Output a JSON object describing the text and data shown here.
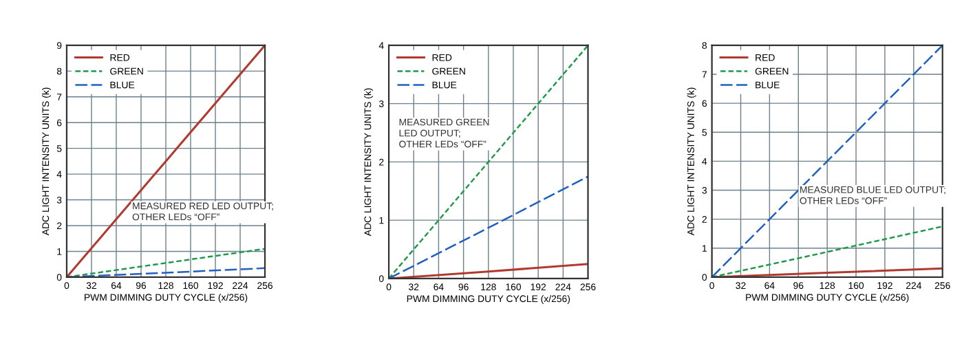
{
  "chart_data": [
    {
      "type": "line",
      "xlabel": "PWM DIMMING DUTY CYCLE (x/256)",
      "ylabel": "ADC LIGHT INTENSITY UNITS (k)",
      "annotations": [
        "MEASURED RED LED OUTPUT;\nOTHER LEDs “OFF”"
      ],
      "xlim": [
        0,
        256
      ],
      "xticks": [
        0,
        32,
        64,
        96,
        128,
        160,
        192,
        224,
        256
      ],
      "ylim": [
        0,
        9
      ],
      "yticks": [
        0,
        1,
        2,
        3,
        4,
        5,
        6,
        7,
        8,
        9
      ],
      "grid": true,
      "legend": "top left",
      "marker": "none",
      "series": [
        {
          "name": "RED",
          "color": "#b03a2e",
          "line_style": "solid",
          "x": [
            0,
            128,
            256
          ],
          "values": [
            0,
            4.5,
            9
          ]
        },
        {
          "name": "GREEN",
          "color": "#1e9a4a",
          "line_style": "dashed",
          "x": [
            0,
            128,
            256
          ],
          "values": [
            0,
            0.55,
            1.1
          ]
        },
        {
          "name": "BLUE",
          "color": "#2060c0",
          "line_style": "dashed",
          "x": [
            0,
            128,
            256
          ],
          "values": [
            0,
            0.17,
            0.35
          ]
        }
      ]
    },
    {
      "type": "line",
      "xlabel": "PWM DIMMING DUTY CYCLE (x/256)",
      "ylabel": "ADC LIGHT INTENSITY UNITS (k)",
      "annotations": [
        "MEASURED GREEN\nLED OUTPUT;\nOTHER LEDs “OFF”"
      ],
      "xlim": [
        0,
        256
      ],
      "xticks": [
        0,
        32,
        64,
        96,
        128,
        160,
        192,
        224,
        256
      ],
      "ylim": [
        0,
        4
      ],
      "yticks": [
        0,
        1,
        2,
        3,
        4
      ],
      "grid": true,
      "legend": "top left",
      "marker": "none",
      "series": [
        {
          "name": "RED",
          "color": "#b03a2e",
          "line_style": "solid",
          "x": [
            0,
            128,
            256
          ],
          "values": [
            0,
            0.12,
            0.25
          ]
        },
        {
          "name": "GREEN",
          "color": "#1e9a4a",
          "line_style": "dashed",
          "x": [
            0,
            128,
            256
          ],
          "values": [
            0,
            2,
            4
          ]
        },
        {
          "name": "BLUE",
          "color": "#2060c0",
          "line_style": "dashed",
          "x": [
            0,
            128,
            256
          ],
          "values": [
            0,
            0.87,
            1.75
          ]
        }
      ]
    },
    {
      "type": "line",
      "xlabel": "PWM DIMMING DUTY CYCLE (x/256)",
      "ylabel": "ADC LIGHT INTENSITY UNITS (k)",
      "annotations": [
        "MEASURED BLUE LED OUTPUT;\nOTHER LEDs “OFF”"
      ],
      "xlim": [
        0,
        256
      ],
      "xticks": [
        0,
        32,
        64,
        96,
        128,
        160,
        192,
        224,
        256
      ],
      "ylim": [
        0,
        8
      ],
      "yticks": [
        0,
        1,
        2,
        3,
        4,
        5,
        6,
        7,
        8
      ],
      "grid": true,
      "legend": "top left",
      "marker": "none",
      "series": [
        {
          "name": "RED",
          "color": "#b03a2e",
          "line_style": "solid",
          "x": [
            0,
            128,
            256
          ],
          "values": [
            0,
            0.15,
            0.3
          ]
        },
        {
          "name": "GREEN",
          "color": "#1e9a4a",
          "line_style": "dashed",
          "x": [
            0,
            128,
            256
          ],
          "values": [
            0,
            0.87,
            1.75
          ]
        },
        {
          "name": "BLUE",
          "color": "#2060c0",
          "line_style": "dashed",
          "x": [
            0,
            128,
            256
          ],
          "values": [
            0,
            4,
            8
          ]
        }
      ]
    }
  ]
}
